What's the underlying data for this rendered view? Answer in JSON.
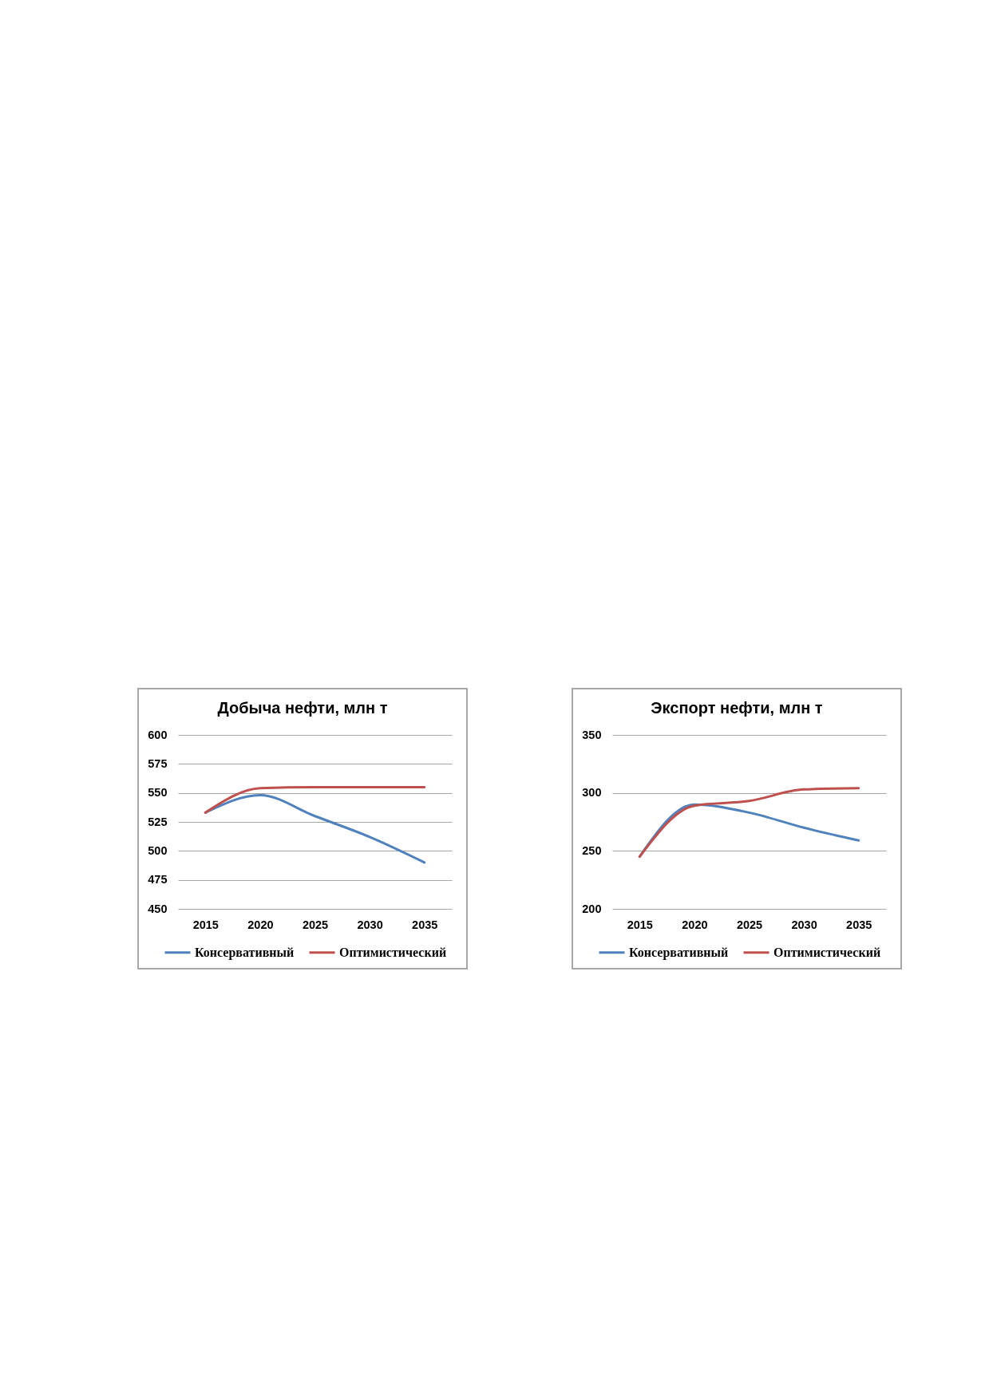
{
  "chart_data": [
    {
      "type": "line",
      "title": "Добыча нефти, млн т",
      "categories": [
        "2015",
        "2020",
        "2025",
        "2030",
        "2035"
      ],
      "series": [
        {
          "name": "Консервативный",
          "color": "#4f81bd",
          "values": [
            533,
            548,
            530,
            512,
            490
          ]
        },
        {
          "name": "Оптимистический",
          "color": "#c0504d",
          "values": [
            533,
            554,
            555,
            555,
            555
          ]
        }
      ],
      "ylim": [
        450,
        600
      ],
      "yticks": [
        450,
        475,
        500,
        525,
        550,
        575,
        600
      ],
      "grid": "y",
      "legend": "bottom"
    },
    {
      "type": "line",
      "title": "Экспорт нефти, млн т",
      "categories": [
        "2015",
        "2020",
        "2025",
        "2030",
        "2035"
      ],
      "series": [
        {
          "name": "Консервативный",
          "color": "#4f81bd",
          "values": [
            245,
            290,
            283,
            270,
            259
          ]
        },
        {
          "name": "Оптимистический",
          "color": "#c0504d",
          "values": [
            245,
            289,
            293,
            303,
            304
          ]
        }
      ],
      "ylim": [
        200,
        350
      ],
      "yticks": [
        200,
        250,
        300,
        350
      ],
      "grid": "y",
      "legend": "bottom"
    }
  ]
}
